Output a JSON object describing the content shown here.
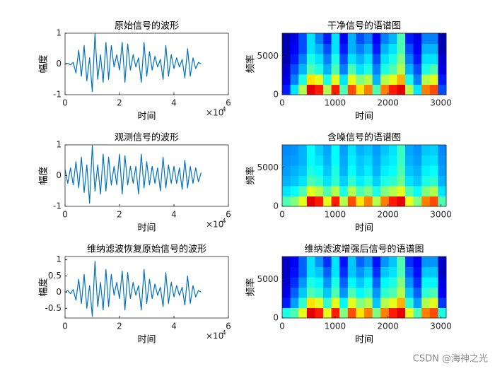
{
  "chart_data": [
    {
      "type": "line",
      "title": "原始信号的波形",
      "xlabel": "时间",
      "ylabel": "幅度",
      "color": "#0072bd",
      "x": [
        0,
        1000,
        2000,
        3000,
        4000,
        5000,
        6000,
        7000,
        8000,
        9000,
        10000,
        11000,
        12000,
        13000,
        14000,
        15000,
        16000,
        17000,
        18000,
        19000,
        20000,
        21000,
        22000,
        23000,
        24000,
        25000,
        26000,
        27000,
        28000,
        29000,
        30000,
        31000,
        32000,
        33000,
        34000,
        35000,
        36000,
        37000,
        38000,
        39000,
        40000,
        41000,
        42000,
        43000,
        44000,
        45000,
        46000,
        47000,
        48000,
        49000,
        50000
      ],
      "values": [
        0,
        0.02,
        -0.03,
        0.05,
        -0.3,
        0.45,
        -0.4,
        0.6,
        -0.55,
        0.2,
        -0.9,
        0.98,
        -0.5,
        0.3,
        -0.6,
        0.7,
        -0.5,
        0.6,
        -0.1,
        0.3,
        -0.2,
        0.7,
        -0.6,
        0.65,
        -0.2,
        0.3,
        -0.1,
        0.2,
        -0.6,
        0.7,
        -0.4,
        0.4,
        -0.2,
        0.25,
        -0.1,
        0.15,
        -0.5,
        0.6,
        -0.4,
        0.3,
        -0.15,
        0.2,
        -0.1,
        0.15,
        -0.45,
        0.5,
        -0.4,
        0.2,
        -0.15,
        0.05,
        0
      ],
      "xlim": [
        0,
        60000
      ],
      "xticks": [
        0,
        {
          "value": 20000,
          "label": "2"
        },
        {
          "value": 40000,
          "label": "4"
        },
        {
          "value": 60000,
          "label": "6"
        }
      ],
      "x_scale_base": "×10",
      "x_scale_exponent": "4",
      "ylim": [
        -1,
        1
      ],
      "yticks": [
        -1,
        0,
        1
      ]
    },
    {
      "type": "heatmap",
      "title": "干净信号的语谱图",
      "xlabel": "时间",
      "ylabel": "频率",
      "xlim": [
        0,
        3100
      ],
      "xticks": [
        0,
        1000,
        2000,
        3000
      ],
      "ylim": [
        0,
        8000
      ],
      "yticks": [
        0,
        5000
      ],
      "values": [
        [
          0.15,
          0.35,
          0.55,
          0.9,
          0.85,
          0.55,
          0.85,
          0.45,
          0.8,
          0.65,
          0.75,
          0.45,
          0.75,
          0.85,
          0.9,
          0.55,
          0.35,
          0.75,
          0.8,
          0.2
        ],
        [
          0.1,
          0.25,
          0.4,
          0.65,
          0.6,
          0.4,
          0.6,
          0.35,
          0.6,
          0.5,
          0.55,
          0.3,
          0.55,
          0.6,
          0.7,
          0.4,
          0.25,
          0.55,
          0.6,
          0.15
        ],
        [
          0.08,
          0.2,
          0.3,
          0.45,
          0.4,
          0.3,
          0.45,
          0.25,
          0.45,
          0.35,
          0.4,
          0.25,
          0.4,
          0.45,
          0.55,
          0.3,
          0.2,
          0.4,
          0.45,
          0.1
        ],
        [
          0.05,
          0.15,
          0.25,
          0.4,
          0.35,
          0.25,
          0.4,
          0.2,
          0.35,
          0.3,
          0.35,
          0.2,
          0.35,
          0.4,
          0.5,
          0.25,
          0.15,
          0.35,
          0.35,
          0.08
        ],
        [
          0.05,
          0.12,
          0.2,
          0.35,
          0.3,
          0.2,
          0.35,
          0.15,
          0.3,
          0.25,
          0.3,
          0.15,
          0.3,
          0.35,
          0.45,
          0.2,
          0.12,
          0.3,
          0.3,
          0.05
        ],
        [
          0.05,
          0.1,
          0.2,
          0.35,
          0.25,
          0.15,
          0.35,
          0.12,
          0.3,
          0.2,
          0.25,
          0.12,
          0.25,
          0.3,
          0.45,
          0.15,
          0.1,
          0.25,
          0.25,
          0.05
        ]
      ]
    },
    {
      "type": "line",
      "title": "观测信号的波形",
      "xlabel": "时间",
      "ylabel": "幅度",
      "color": "#0072bd",
      "x": [
        0,
        1000,
        2000,
        3000,
        4000,
        5000,
        6000,
        7000,
        8000,
        9000,
        10000,
        11000,
        12000,
        13000,
        14000,
        15000,
        16000,
        17000,
        18000,
        19000,
        20000,
        21000,
        22000,
        23000,
        24000,
        25000,
        26000,
        27000,
        28000,
        29000,
        30000,
        31000,
        32000,
        33000,
        34000,
        35000,
        36000,
        37000,
        38000,
        39000,
        40000,
        41000,
        42000,
        43000,
        44000,
        45000,
        46000,
        47000,
        48000,
        49000,
        50000
      ],
      "values": [
        0.2,
        -0.25,
        0.25,
        -0.3,
        0.45,
        -0.4,
        0.6,
        -0.55,
        0.35,
        -0.9,
        0.98,
        -0.5,
        0.35,
        -0.6,
        0.7,
        -0.5,
        0.6,
        -0.3,
        0.3,
        -0.3,
        0.7,
        -0.6,
        0.65,
        -0.3,
        0.3,
        -0.25,
        0.3,
        -0.6,
        0.7,
        -0.4,
        0.45,
        -0.3,
        0.3,
        -0.25,
        0.25,
        -0.5,
        0.6,
        -0.4,
        0.35,
        -0.25,
        0.3,
        -0.25,
        0.25,
        -0.45,
        0.5,
        -0.4,
        0.3,
        -0.25,
        0.25,
        -0.2,
        0.1
      ],
      "xlim": [
        0,
        60000
      ],
      "xticks": [
        0,
        {
          "value": 20000,
          "label": "2"
        },
        {
          "value": 40000,
          "label": "4"
        },
        {
          "value": 60000,
          "label": "6"
        }
      ],
      "x_scale_base": "×10",
      "x_scale_exponent": "4",
      "ylim": [
        -1,
        1
      ],
      "yticks": [
        -1,
        0,
        1
      ]
    },
    {
      "type": "heatmap",
      "title": "含噪信号的语谱图",
      "xlabel": "时间",
      "ylabel": "频率",
      "xlim": [
        0,
        3100
      ],
      "xticks": [
        0,
        1000,
        2000,
        3000
      ],
      "ylim": [
        0,
        8000
      ],
      "yticks": [
        0,
        5000
      ],
      "values": [
        [
          0.45,
          0.5,
          0.6,
          0.9,
          0.85,
          0.6,
          0.85,
          0.55,
          0.8,
          0.65,
          0.75,
          0.55,
          0.75,
          0.85,
          0.9,
          0.6,
          0.5,
          0.75,
          0.8,
          0.45
        ],
        [
          0.35,
          0.38,
          0.45,
          0.6,
          0.55,
          0.45,
          0.55,
          0.4,
          0.55,
          0.45,
          0.5,
          0.4,
          0.5,
          0.55,
          0.6,
          0.45,
          0.38,
          0.5,
          0.55,
          0.35
        ],
        [
          0.3,
          0.32,
          0.35,
          0.45,
          0.42,
          0.35,
          0.42,
          0.33,
          0.42,
          0.36,
          0.4,
          0.33,
          0.4,
          0.42,
          0.48,
          0.35,
          0.32,
          0.4,
          0.42,
          0.3
        ],
        [
          0.28,
          0.3,
          0.32,
          0.4,
          0.38,
          0.32,
          0.4,
          0.3,
          0.38,
          0.33,
          0.36,
          0.3,
          0.36,
          0.38,
          0.45,
          0.32,
          0.3,
          0.36,
          0.38,
          0.28
        ],
        [
          0.27,
          0.28,
          0.3,
          0.38,
          0.35,
          0.3,
          0.38,
          0.29,
          0.36,
          0.32,
          0.34,
          0.29,
          0.34,
          0.36,
          0.43,
          0.3,
          0.28,
          0.34,
          0.35,
          0.27
        ],
        [
          0.26,
          0.27,
          0.3,
          0.38,
          0.33,
          0.29,
          0.38,
          0.28,
          0.35,
          0.3,
          0.32,
          0.28,
          0.32,
          0.35,
          0.43,
          0.29,
          0.27,
          0.32,
          0.33,
          0.26
        ]
      ]
    },
    {
      "type": "line",
      "title": "维纳滤波恢复原始信号的波形",
      "xlabel": "时间",
      "ylabel": "幅度",
      "color": "#0072bd",
      "x": [
        0,
        1000,
        2000,
        3000,
        4000,
        5000,
        6000,
        7000,
        8000,
        9000,
        10000,
        11000,
        12000,
        13000,
        14000,
        15000,
        16000,
        17000,
        18000,
        19000,
        20000,
        21000,
        22000,
        23000,
        24000,
        25000,
        26000,
        27000,
        28000,
        29000,
        30000,
        31000,
        32000,
        33000,
        34000,
        35000,
        36000,
        37000,
        38000,
        39000,
        40000,
        41000,
        42000,
        43000,
        44000,
        45000,
        46000,
        47000,
        48000,
        49000,
        50000
      ],
      "values": [
        0,
        0.05,
        -0.05,
        0.08,
        -0.25,
        0.4,
        -0.35,
        0.55,
        -0.5,
        0.2,
        -0.75,
        0.95,
        -0.45,
        0.3,
        -0.55,
        0.7,
        -0.45,
        0.55,
        -0.1,
        0.3,
        -0.2,
        0.65,
        -0.55,
        0.6,
        -0.2,
        0.3,
        -0.1,
        0.2,
        -0.55,
        0.7,
        -0.35,
        0.4,
        -0.2,
        0.25,
        -0.1,
        0.15,
        -0.45,
        0.6,
        -0.35,
        0.3,
        -0.15,
        0.2,
        -0.1,
        0.15,
        -0.4,
        0.5,
        -0.35,
        0.2,
        -0.15,
        0.05,
        0
      ],
      "xlim": [
        0,
        60000
      ],
      "xticks": [
        0,
        {
          "value": 20000,
          "label": "2"
        },
        {
          "value": 40000,
          "label": "4"
        },
        {
          "value": 60000,
          "label": "6"
        }
      ],
      "x_scale_base": "×10",
      "x_scale_exponent": "4",
      "ylim": [
        -0.8,
        1.1
      ],
      "yticks": [
        -0.5,
        0,
        0.5,
        1
      ]
    },
    {
      "type": "heatmap",
      "title": "维纳滤波增强后信号的语谱图",
      "xlabel": "时间",
      "ylabel": "频率",
      "xlim": [
        0,
        3100
      ],
      "xticks": [
        0,
        1000,
        2000,
        3000
      ],
      "ylim": [
        0,
        8000
      ],
      "yticks": [
        0,
        5000
      ],
      "values": [
        [
          0.4,
          0.45,
          0.6,
          0.9,
          0.85,
          0.6,
          0.85,
          0.5,
          0.8,
          0.65,
          0.75,
          0.5,
          0.75,
          0.85,
          0.9,
          0.6,
          0.45,
          0.75,
          0.8,
          0.4
        ],
        [
          0.15,
          0.28,
          0.42,
          0.65,
          0.6,
          0.42,
          0.6,
          0.37,
          0.6,
          0.5,
          0.55,
          0.32,
          0.55,
          0.6,
          0.7,
          0.42,
          0.28,
          0.55,
          0.6,
          0.18
        ],
        [
          0.1,
          0.22,
          0.32,
          0.45,
          0.42,
          0.32,
          0.45,
          0.27,
          0.45,
          0.37,
          0.42,
          0.27,
          0.42,
          0.45,
          0.55,
          0.32,
          0.22,
          0.42,
          0.45,
          0.12
        ],
        [
          0.08,
          0.17,
          0.27,
          0.4,
          0.37,
          0.27,
          0.4,
          0.22,
          0.37,
          0.32,
          0.37,
          0.22,
          0.37,
          0.4,
          0.5,
          0.27,
          0.17,
          0.37,
          0.37,
          0.1
        ],
        [
          0.07,
          0.14,
          0.22,
          0.35,
          0.32,
          0.22,
          0.35,
          0.17,
          0.32,
          0.27,
          0.32,
          0.17,
          0.32,
          0.35,
          0.45,
          0.22,
          0.14,
          0.32,
          0.32,
          0.07
        ],
        [
          0.07,
          0.12,
          0.22,
          0.35,
          0.27,
          0.17,
          0.35,
          0.14,
          0.32,
          0.22,
          0.27,
          0.14,
          0.27,
          0.32,
          0.45,
          0.17,
          0.12,
          0.27,
          0.27,
          0.07
        ]
      ]
    }
  ],
  "watermark": "CSDN @海神之光"
}
